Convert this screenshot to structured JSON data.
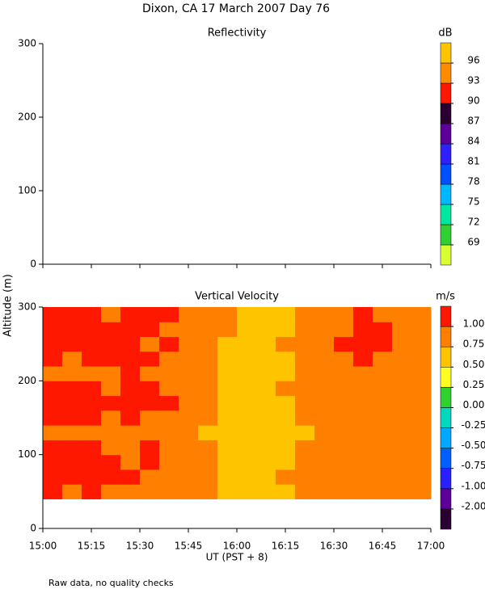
{
  "title": "Dixon, CA 17 March 2007  Day  76",
  "y_label": "Altitude (m)",
  "note": "Raw data, no quality checks",
  "chart_data": [
    {
      "type": "heatmap",
      "title": "Reflectivity",
      "ylim": [
        0,
        300
      ],
      "yticks": [
        0,
        100,
        200,
        300
      ],
      "colorbar": {
        "label": "dB",
        "ticks": [
          69,
          72,
          75,
          78,
          81,
          84,
          87,
          90,
          93,
          96
        ],
        "colors": [
          "#d8ff30",
          "#30d030",
          "#00e8a0",
          "#00b8ff",
          "#0050ff",
          "#3020ff",
          "#5c0099",
          "#2a0033",
          "#ff1800",
          "#ff8c00",
          "#ffc400"
        ]
      }
    },
    {
      "type": "heatmap",
      "title": "Vertical Velocity",
      "x_label": "UT  (PST + 8)",
      "xlim": [
        15,
        17
      ],
      "xticks": [
        {
          "value": 15,
          "label": "15:00"
        },
        {
          "value": 15.25,
          "label": "15:15"
        },
        {
          "value": 15.5,
          "label": "15:30"
        },
        {
          "value": 15.75,
          "label": "15:45"
        },
        {
          "value": 16,
          "label": "16:00"
        },
        {
          "value": 16.25,
          "label": "16:15"
        },
        {
          "value": 16.5,
          "label": "16:30"
        },
        {
          "value": 16.75,
          "label": "16:45"
        },
        {
          "value": 17,
          "label": "17:00"
        }
      ],
      "ylim": [
        0,
        300
      ],
      "yticks": [
        0,
        100,
        200,
        300
      ],
      "colorbar": {
        "label": "m/s",
        "ticks": [
          {
            "value": -2,
            "label": "-2.00"
          },
          {
            "value": -1,
            "label": "-1.00"
          },
          {
            "value": -0.75,
            "label": "-0.75"
          },
          {
            "value": -0.5,
            "label": "-0.50"
          },
          {
            "value": -0.25,
            "label": "-0.25"
          },
          {
            "value": 0,
            "label": "0.00"
          },
          {
            "value": 0.25,
            "label": "0.25"
          },
          {
            "value": 0.5,
            "label": "0.50"
          },
          {
            "value": 0.75,
            "label": "0.75"
          },
          {
            "value": 1,
            "label": "1.00"
          }
        ],
        "colors": [
          "#2a0033",
          "#5c0099",
          "#2a20ff",
          "#0060ff",
          "#00a8ff",
          "#00d8c0",
          "#30d030",
          "#ffff20",
          "#ffc400",
          "#ff8000",
          "#ff1800"
        ]
      },
      "x": [
        15.05,
        15.15,
        15.25,
        15.35,
        15.45,
        15.55,
        15.65,
        15.75,
        15.85,
        15.95,
        16.05,
        16.15,
        16.25,
        16.35,
        16.45,
        16.55,
        16.65,
        16.75,
        16.85,
        16.95
      ],
      "y": [
        50,
        70,
        90,
        110,
        130,
        150,
        170,
        190,
        210,
        230,
        250,
        270,
        290
      ],
      "values": [
        [
          1.05,
          0.85,
          1.05,
          0.85,
          0.85,
          0.85,
          0.85,
          0.85,
          0.85,
          0.6,
          0.6,
          0.6,
          0.6,
          0.85,
          0.85,
          0.85,
          0.85,
          0.85,
          0.85,
          0.85
        ],
        [
          1.05,
          1.05,
          1.05,
          1.05,
          1.05,
          0.85,
          0.85,
          0.85,
          0.85,
          0.6,
          0.6,
          0.6,
          0.85,
          0.85,
          0.85,
          0.85,
          0.85,
          0.85,
          0.85,
          0.85
        ],
        [
          1.05,
          1.05,
          1.05,
          1.05,
          0.85,
          1.05,
          0.85,
          0.85,
          0.85,
          0.6,
          0.6,
          0.6,
          0.6,
          0.85,
          0.85,
          0.85,
          0.85,
          0.85,
          0.85,
          0.85
        ],
        [
          1.05,
          1.05,
          1.05,
          0.85,
          0.85,
          1.05,
          0.85,
          0.85,
          0.85,
          0.6,
          0.6,
          0.6,
          0.6,
          0.85,
          0.85,
          0.85,
          0.85,
          0.85,
          0.85,
          0.85
        ],
        [
          0.85,
          0.85,
          0.85,
          0.85,
          0.85,
          0.85,
          0.85,
          0.85,
          0.6,
          0.6,
          0.6,
          0.6,
          0.6,
          0.6,
          0.85,
          0.85,
          0.85,
          0.85,
          0.85,
          0.85
        ],
        [
          1.05,
          1.05,
          1.05,
          0.85,
          1.05,
          0.85,
          0.85,
          0.85,
          0.85,
          0.6,
          0.6,
          0.6,
          0.6,
          0.85,
          0.85,
          0.85,
          0.85,
          0.85,
          0.85,
          0.85
        ],
        [
          1.05,
          1.05,
          1.05,
          1.05,
          1.05,
          1.05,
          1.05,
          0.85,
          0.85,
          0.6,
          0.6,
          0.6,
          0.6,
          0.85,
          0.85,
          0.85,
          0.85,
          0.85,
          0.85,
          0.85
        ],
        [
          1.05,
          1.05,
          1.05,
          0.85,
          1.05,
          1.05,
          0.85,
          0.85,
          0.85,
          0.6,
          0.6,
          0.6,
          0.85,
          0.85,
          0.85,
          0.85,
          0.85,
          0.85,
          0.85,
          0.85
        ],
        [
          0.85,
          0.85,
          0.85,
          0.85,
          1.05,
          0.85,
          0.85,
          0.85,
          0.85,
          0.6,
          0.6,
          0.6,
          0.6,
          0.85,
          0.85,
          0.85,
          0.85,
          0.85,
          0.85,
          0.85
        ],
        [
          1.05,
          0.85,
          1.05,
          1.05,
          1.05,
          1.05,
          0.85,
          0.85,
          0.85,
          0.6,
          0.6,
          0.6,
          0.6,
          0.85,
          0.85,
          0.85,
          1.05,
          0.85,
          0.85,
          0.85
        ],
        [
          1.05,
          1.05,
          1.05,
          1.05,
          1.05,
          0.85,
          1.05,
          0.85,
          0.85,
          0.6,
          0.6,
          0.6,
          0.85,
          0.85,
          0.85,
          1.05,
          1.05,
          1.05,
          0.85,
          0.85
        ],
        [
          1.05,
          1.05,
          1.05,
          1.05,
          1.05,
          1.05,
          0.85,
          0.85,
          0.85,
          0.85,
          0.6,
          0.6,
          0.6,
          0.85,
          0.85,
          0.85,
          1.05,
          1.05,
          0.85,
          0.85
        ],
        [
          1.05,
          1.05,
          1.05,
          0.85,
          1.05,
          1.05,
          1.05,
          0.85,
          0.85,
          0.85,
          0.6,
          0.6,
          0.6,
          0.85,
          0.85,
          0.85,
          1.05,
          0.85,
          0.85,
          0.85
        ]
      ]
    }
  ]
}
